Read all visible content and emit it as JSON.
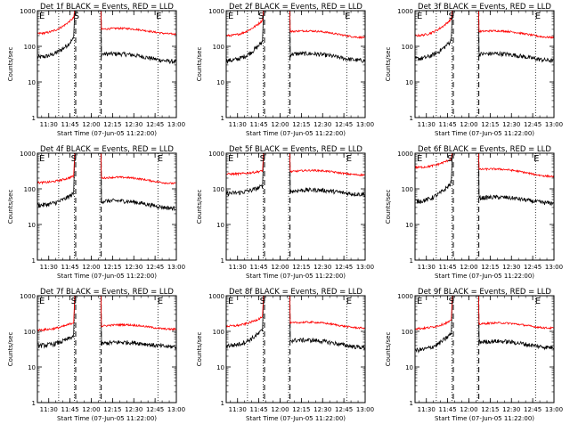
{
  "chart_data": [
    {
      "type": "line",
      "panel": "1f",
      "title": "Det 1f BLACK = Events, RED = LLD",
      "ylabel": "Counts/sec",
      "xlabel": "Start Time (07-Jun-05 11:22:00)",
      "xlim": [
        "11:22",
        "13:00"
      ],
      "ylim": [
        1,
        1000
      ],
      "yscale": "log",
      "xticks": [
        "11:30",
        "11:45",
        "12:00",
        "12:15",
        "12:30",
        "12:45",
        "13:00"
      ],
      "yticks": [
        "1",
        "10",
        "100",
        "1000"
      ],
      "markers": [
        {
          "label": "E",
          "time": "11:22"
        },
        {
          "label": "S",
          "time": "11:47"
        },
        {
          "label": "E",
          "time": "12:45"
        }
      ],
      "dotted_lines": [
        "11:37",
        "11:48",
        "12:06",
        "12:47"
      ],
      "dashed_lines": [
        "11:49",
        "12:07"
      ],
      "series": [
        {
          "name": "Events",
          "color": "#000000",
          "pre_start": 50,
          "pre_end": 170,
          "post_start": 60,
          "post_end": 42
        },
        {
          "name": "LLD",
          "color": "#ff0000",
          "pre_start": 230,
          "pre_end": 650,
          "post_start": 300,
          "post_end": 250
        }
      ]
    },
    {
      "type": "line",
      "panel": "2f",
      "title": "Det 2f BLACK = Events, RED = LLD",
      "ylabel": "Counts/sec",
      "xlabel": "Start Time (07-Jun-05 11:22:00)",
      "xlim": [
        "11:22",
        "13:00"
      ],
      "ylim": [
        1,
        1000
      ],
      "yscale": "log",
      "xticks": [
        "11:30",
        "11:45",
        "12:00",
        "12:15",
        "12:30",
        "12:45",
        "13:00"
      ],
      "yticks": [
        "1",
        "10",
        "100",
        "1000"
      ],
      "markers": [
        {
          "label": "E",
          "time": "11:22"
        },
        {
          "label": "S",
          "time": "11:44"
        },
        {
          "label": "E",
          "time": "12:45"
        }
      ],
      "dotted_lines": [
        "11:37",
        "11:48",
        "12:06",
        "12:47"
      ],
      "dashed_lines": [
        "11:49",
        "12:07"
      ],
      "series": [
        {
          "name": "Events",
          "color": "#000000",
          "pre_start": 40,
          "pre_end": 140,
          "post_start": 60,
          "post_end": 45
        },
        {
          "name": "LLD",
          "color": "#ff0000",
          "pre_start": 200,
          "pre_end": 550,
          "post_start": 260,
          "post_end": 200
        }
      ]
    },
    {
      "type": "line",
      "panel": "3f",
      "title": "Det 3f BLACK = Events, RED = LLD",
      "ylabel": "Counts/sec",
      "xlabel": "Start Time (07-Jun-05 11:22:00)",
      "xlim": [
        "11:22",
        "13:00"
      ],
      "ylim": [
        1,
        1000
      ],
      "yscale": "log",
      "xticks": [
        "11:30",
        "11:45",
        "12:00",
        "12:15",
        "12:30",
        "12:45",
        "13:00"
      ],
      "yticks": [
        "1",
        "10",
        "100",
        "1000"
      ],
      "markers": [
        {
          "label": "E",
          "time": "11:22"
        },
        {
          "label": "S",
          "time": "11:45"
        },
        {
          "label": "E",
          "time": "12:46"
        }
      ],
      "dotted_lines": [
        "11:37",
        "11:48",
        "12:06",
        "12:47"
      ],
      "dashed_lines": [
        "11:49",
        "12:07"
      ],
      "series": [
        {
          "name": "Events",
          "color": "#000000",
          "pre_start": 45,
          "pre_end": 150,
          "post_start": 60,
          "post_end": 45
        },
        {
          "name": "LLD",
          "color": "#ff0000",
          "pre_start": 200,
          "pre_end": 600,
          "post_start": 260,
          "post_end": 200
        }
      ]
    },
    {
      "type": "line",
      "panel": "4f",
      "title": "Det 4f BLACK = Events, RED = LLD",
      "ylabel": "Counts/sec",
      "xlabel": "Start Time (07-Jun-05 11:22:00)",
      "xlim": [
        "11:22",
        "13:00"
      ],
      "ylim": [
        1,
        1000
      ],
      "yscale": "log",
      "xticks": [
        "11:30",
        "11:45",
        "12:00",
        "12:15",
        "12:30",
        "12:45",
        "13:00"
      ],
      "yticks": [
        "1",
        "10",
        "100",
        "1000"
      ],
      "markers": [
        {
          "label": "E",
          "time": "11:22"
        },
        {
          "label": "S",
          "time": "11:45"
        },
        {
          "label": "E",
          "time": "12:46"
        }
      ],
      "dotted_lines": [
        "11:37",
        "11:48",
        "12:06",
        "12:47"
      ],
      "dashed_lines": [
        "11:49",
        "12:07"
      ],
      "series": [
        {
          "name": "Events",
          "color": "#000000",
          "pre_start": 35,
          "pre_end": 75,
          "post_start": 45,
          "post_end": 32
        },
        {
          "name": "LLD",
          "color": "#ff0000",
          "pre_start": 150,
          "pre_end": 230,
          "post_start": 200,
          "post_end": 160
        }
      ]
    },
    {
      "type": "line",
      "panel": "5f",
      "title": "Det 5f BLACK = Events, RED = LLD",
      "ylabel": "Counts/sec",
      "xlabel": "Start Time (07-Jun-05 11:22:00)",
      "xlim": [
        "11:22",
        "13:00"
      ],
      "ylim": [
        1,
        1000
      ],
      "yscale": "log",
      "xticks": [
        "11:30",
        "11:45",
        "12:00",
        "12:15",
        "12:30",
        "12:45",
        "13:00"
      ],
      "yticks": [
        "1",
        "10",
        "100",
        "1000"
      ],
      "markers": [
        {
          "label": "E",
          "time": "11:22"
        },
        {
          "label": "S",
          "time": "11:45"
        },
        {
          "label": "E",
          "time": "12:46"
        }
      ],
      "dotted_lines": [
        "11:37",
        "11:48",
        "12:06",
        "12:47"
      ],
      "dashed_lines": [
        "11:49",
        "12:07"
      ],
      "series": [
        {
          "name": "Events",
          "color": "#000000",
          "pre_start": 75,
          "pre_end": 120,
          "post_start": 85,
          "post_end": 80
        },
        {
          "name": "LLD",
          "color": "#ff0000",
          "pre_start": 260,
          "pre_end": 320,
          "post_start": 300,
          "post_end": 280
        }
      ]
    },
    {
      "type": "line",
      "panel": "6f",
      "title": "Det 6f BLACK = Events, RED = LLD",
      "ylabel": "Counts/sec",
      "xlabel": "Start Time (07-Jun-05 11:22:00)",
      "xlim": [
        "11:22",
        "13:00"
      ],
      "ylim": [
        1,
        1000
      ],
      "yscale": "log",
      "xticks": [
        "11:30",
        "11:45",
        "12:00",
        "12:15",
        "12:30",
        "12:45",
        "13:00"
      ],
      "yticks": [
        "1",
        "10",
        "100",
        "1000"
      ],
      "markers": [
        {
          "label": "E",
          "time": "11:22"
        },
        {
          "label": "S",
          "time": "11:44"
        },
        {
          "label": "E",
          "time": "12:45"
        }
      ],
      "dotted_lines": [
        "11:37",
        "11:48",
        "12:06",
        "12:47"
      ],
      "dashed_lines": [
        "11:49",
        "12:07"
      ],
      "series": [
        {
          "name": "Events",
          "color": "#000000",
          "pre_start": 45,
          "pre_end": 150,
          "post_start": 55,
          "post_end": 45
        },
        {
          "name": "LLD",
          "color": "#ff0000",
          "pre_start": 400,
          "pre_end": 700,
          "post_start": 350,
          "post_end": 250
        }
      ]
    },
    {
      "type": "line",
      "panel": "7f",
      "title": "Det 7f BLACK = Events, RED = LLD",
      "ylabel": "Counts/sec",
      "xlabel": "Start Time (07-Jun-05 11:22:00)",
      "xlim": [
        "11:22",
        "13:00"
      ],
      "ylim": [
        1,
        1000
      ],
      "yscale": "log",
      "xticks": [
        "11:30",
        "11:45",
        "12:00",
        "12:15",
        "12:30",
        "12:45",
        "13:00"
      ],
      "yticks": [
        "1",
        "10",
        "100",
        "1000"
      ],
      "markers": [
        {
          "label": "E",
          "time": "11:22"
        },
        {
          "label": "S",
          "time": "11:45"
        },
        {
          "label": "E",
          "time": "12:46"
        }
      ],
      "dotted_lines": [
        "11:37",
        "11:48",
        "12:06",
        "12:47"
      ],
      "dashed_lines": [
        "11:49",
        "12:07"
      ],
      "series": [
        {
          "name": "Events",
          "color": "#000000",
          "pre_start": 40,
          "pre_end": 75,
          "post_start": 45,
          "post_end": 42
        },
        {
          "name": "LLD",
          "color": "#ff0000",
          "pre_start": 110,
          "pre_end": 180,
          "post_start": 140,
          "post_end": 130
        }
      ]
    },
    {
      "type": "line",
      "panel": "8f",
      "title": "Det 8f BLACK = Events, RED = LLD",
      "ylabel": "Counts/sec",
      "xlabel": "Start Time (07-Jun-05 11:22:00)",
      "xlim": [
        "11:22",
        "13:00"
      ],
      "ylim": [
        1,
        1000
      ],
      "yscale": "log",
      "xticks": [
        "11:30",
        "11:45",
        "12:00",
        "12:15",
        "12:30",
        "12:45",
        "13:00"
      ],
      "yticks": [
        "1",
        "10",
        "100",
        "1000"
      ],
      "markers": [
        {
          "label": "E",
          "time": "11:22"
        },
        {
          "label": "S",
          "time": "11:45"
        },
        {
          "label": "E",
          "time": "12:46"
        }
      ],
      "dotted_lines": [
        "11:37",
        "11:48",
        "12:06",
        "12:47"
      ],
      "dashed_lines": [
        "11:49",
        "12:07"
      ],
      "series": [
        {
          "name": "Events",
          "color": "#000000",
          "pre_start": 40,
          "pre_end": 110,
          "post_start": 55,
          "post_end": 40
        },
        {
          "name": "LLD",
          "color": "#ff0000",
          "pre_start": 140,
          "pre_end": 260,
          "post_start": 170,
          "post_end": 140
        }
      ]
    },
    {
      "type": "line",
      "panel": "9f",
      "title": "Det 9f BLACK = Events, RED = LLD",
      "ylabel": "Counts/sec",
      "xlabel": "Start Time (07-Jun-05 11:22:00)",
      "xlim": [
        "11:22",
        "13:00"
      ],
      "ylim": [
        1,
        1000
      ],
      "yscale": "log",
      "xticks": [
        "11:30",
        "11:45",
        "12:00",
        "12:15",
        "12:30",
        "12:45",
        "13:00"
      ],
      "yticks": [
        "1",
        "10",
        "100",
        "1000"
      ],
      "markers": [
        {
          "label": "E",
          "time": "11:22"
        },
        {
          "label": "S",
          "time": "11:45"
        },
        {
          "label": "E",
          "time": "12:46"
        }
      ],
      "dotted_lines": [
        "11:37",
        "11:48",
        "12:06",
        "12:47"
      ],
      "dashed_lines": [
        "11:49",
        "12:07"
      ],
      "series": [
        {
          "name": "Events",
          "color": "#000000",
          "pre_start": 30,
          "pre_end": 90,
          "post_start": 50,
          "post_end": 40
        },
        {
          "name": "LLD",
          "color": "#ff0000",
          "pre_start": 120,
          "pre_end": 200,
          "post_start": 160,
          "post_end": 140
        }
      ]
    }
  ]
}
